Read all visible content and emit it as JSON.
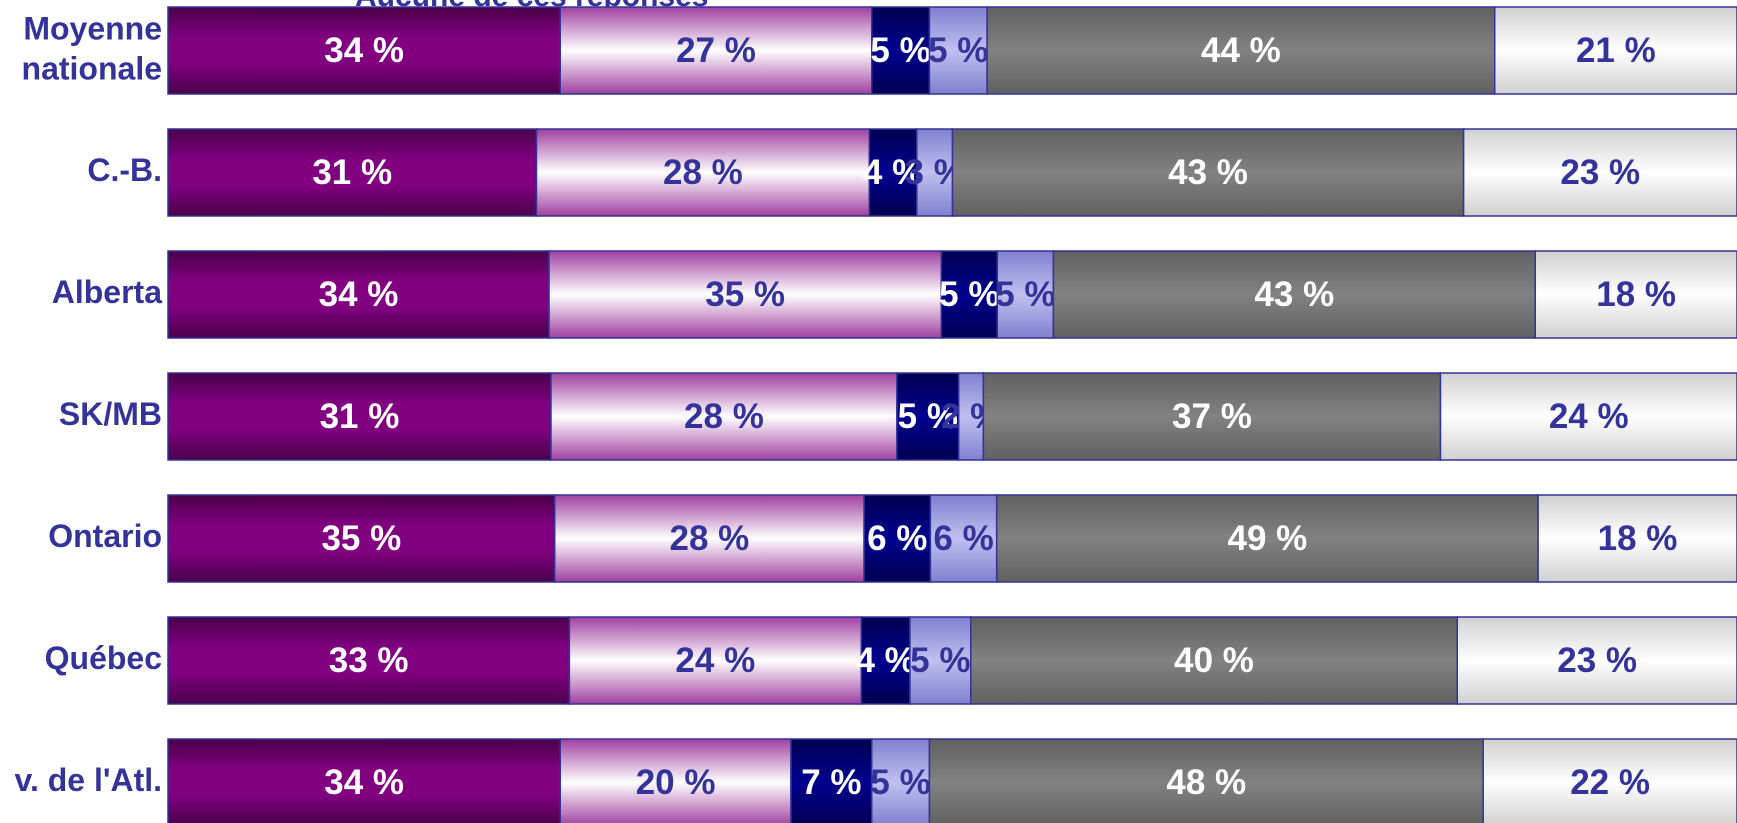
{
  "chart_data": {
    "type": "bar",
    "orientation": "horizontal",
    "stack": "percent",
    "annotation": "Aucune de ces réponses",
    "categories": [
      "Moyenne nationale",
      "C.-B.",
      "Alberta",
      "SK/MB",
      "Ontario",
      "Québec",
      "v. de l'Atl."
    ],
    "series": [
      {
        "color": "#800080",
        "values": [
          34,
          31,
          34,
          31,
          35,
          33,
          34
        ],
        "value_labels": [
          "34 %",
          "31 %",
          "34 %",
          "31 %",
          "35 %",
          "33 %",
          "34 %"
        ]
      },
      {
        "color": "#ffffff",
        "values": [
          27,
          28,
          35,
          28,
          28,
          24,
          20
        ],
        "value_labels": [
          "27 %",
          "28 %",
          "35 %",
          "28 %",
          "28 %",
          "24 %",
          "20 %"
        ]
      },
      {
        "color": "#000080",
        "values": [
          5,
          4,
          5,
          5,
          6,
          4,
          7
        ],
        "value_labels": [
          "5 %",
          "4 %",
          "5 %",
          "5 %",
          "6 %",
          "4 %",
          "7 %"
        ]
      },
      {
        "color": "#a6a6e6",
        "values": [
          5,
          3,
          5,
          2,
          6,
          5,
          5
        ],
        "value_labels": [
          "5 %",
          "3 %",
          "5 %",
          "2 %",
          "6 %",
          "5 %",
          "5 %"
        ]
      },
      {
        "color": "#808080",
        "values": [
          44,
          43,
          43,
          37,
          49,
          40,
          48
        ],
        "value_labels": [
          "44 %",
          "43 %",
          "43 %",
          "37 %",
          "49 %",
          "40 %",
          "48 %"
        ]
      },
      {
        "color": "#f2f2f2",
        "values": [
          21,
          23,
          18,
          24,
          18,
          23,
          22
        ],
        "value_labels": [
          "21 %",
          "23 %",
          "18 %",
          "24 %",
          "18 %",
          "23 %",
          "22 %"
        ]
      }
    ]
  }
}
